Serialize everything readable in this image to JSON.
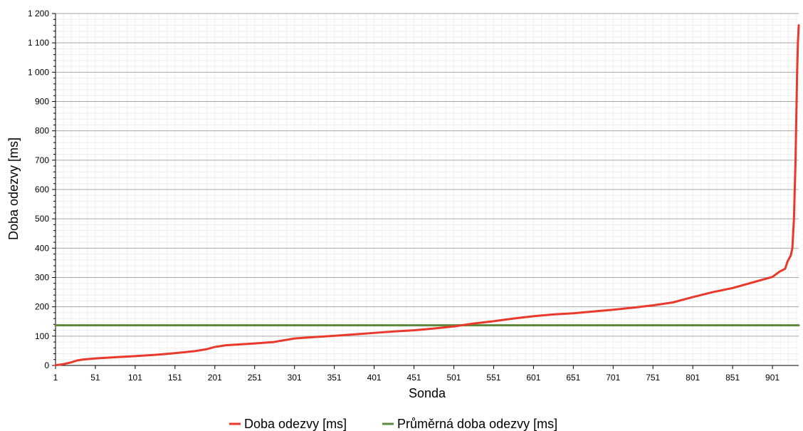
{
  "chart_data": {
    "type": "line",
    "title": "",
    "xlabel": "Sonda",
    "ylabel": "Doba odezvy [ms]",
    "xlim": [
      1,
      934
    ],
    "ylim": [
      0,
      1200
    ],
    "x_ticks": [
      "1",
      "51",
      "101",
      "151",
      "201",
      "251",
      "301",
      "351",
      "401",
      "451",
      "501",
      "551",
      "601",
      "651",
      "701",
      "751",
      "801",
      "851",
      "901"
    ],
    "y_ticks": [
      "0",
      "100",
      "200",
      "300",
      "400",
      "500",
      "600",
      "700",
      "800",
      "900",
      "1 000",
      "1 100",
      "1 200"
    ],
    "grid": true,
    "legend_position": "bottom",
    "series": [
      {
        "name": "Doba odezvy [ms]",
        "color": "#e8392b",
        "x": [
          1,
          10,
          20,
          28,
          35,
          51,
          75,
          101,
          126,
          151,
          176,
          190,
          201,
          215,
          251,
          275,
          301,
          326,
          351,
          376,
          401,
          426,
          451,
          476,
          501,
          526,
          551,
          576,
          601,
          626,
          651,
          676,
          701,
          726,
          751,
          776,
          801,
          826,
          851,
          876,
          901,
          910,
          917,
          920,
          924,
          926,
          928,
          930,
          931,
          932,
          933,
          934
        ],
        "y": [
          1,
          4,
          10,
          17,
          20,
          24,
          28,
          32,
          36,
          42,
          49,
          55,
          63,
          69,
          75,
          80,
          92,
          97,
          101,
          106,
          111,
          116,
          120,
          126,
          133,
          143,
          151,
          160,
          168,
          174,
          178,
          184,
          190,
          197,
          205,
          215,
          233,
          250,
          264,
          283,
          302,
          320,
          330,
          355,
          375,
          400,
          500,
          700,
          850,
          1000,
          1100,
          1160
        ]
      },
      {
        "name": "Průměrná doba odezvy [ms]",
        "color": "#5c8a3a",
        "x": [
          1,
          934
        ],
        "y": [
          137,
          137
        ]
      }
    ]
  }
}
